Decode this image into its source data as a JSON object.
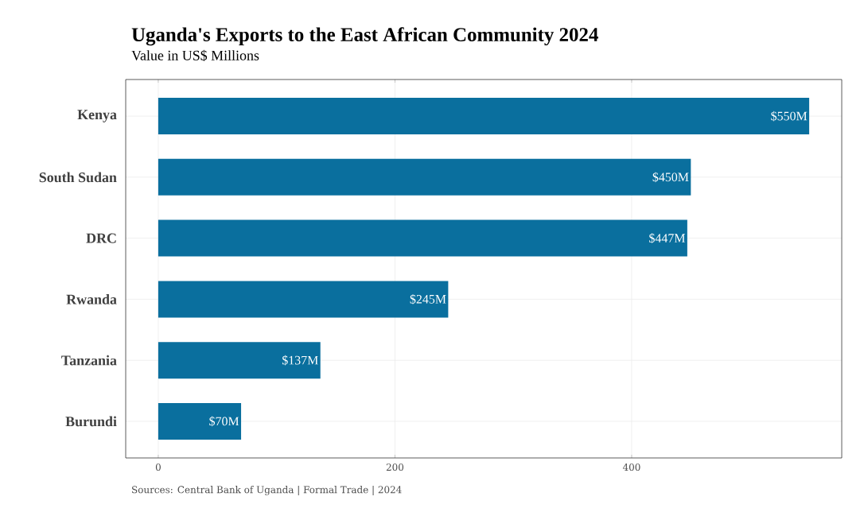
{
  "chart_data": {
    "type": "bar",
    "orientation": "horizontal",
    "title": "Uganda's Exports to the East African Community 2024",
    "subtitle": "Value in US$ Millions",
    "categories": [
      "Kenya",
      "South Sudan",
      "DRC",
      "Rwanda",
      "Tanzania",
      "Burundi"
    ],
    "values": [
      550,
      450,
      447,
      245,
      137,
      70
    ],
    "value_labels": [
      "$550M",
      "$450M",
      "$447M",
      "$245M",
      "$137M",
      "$70M"
    ],
    "color": "#0a6f9e",
    "xlim": [
      -27.5,
      577.5
    ],
    "xticks": [
      0,
      200,
      400
    ],
    "grid": true,
    "annotations": [
      "Sources: Central Bank of Uganda | Formal Trade | 2024"
    ]
  }
}
